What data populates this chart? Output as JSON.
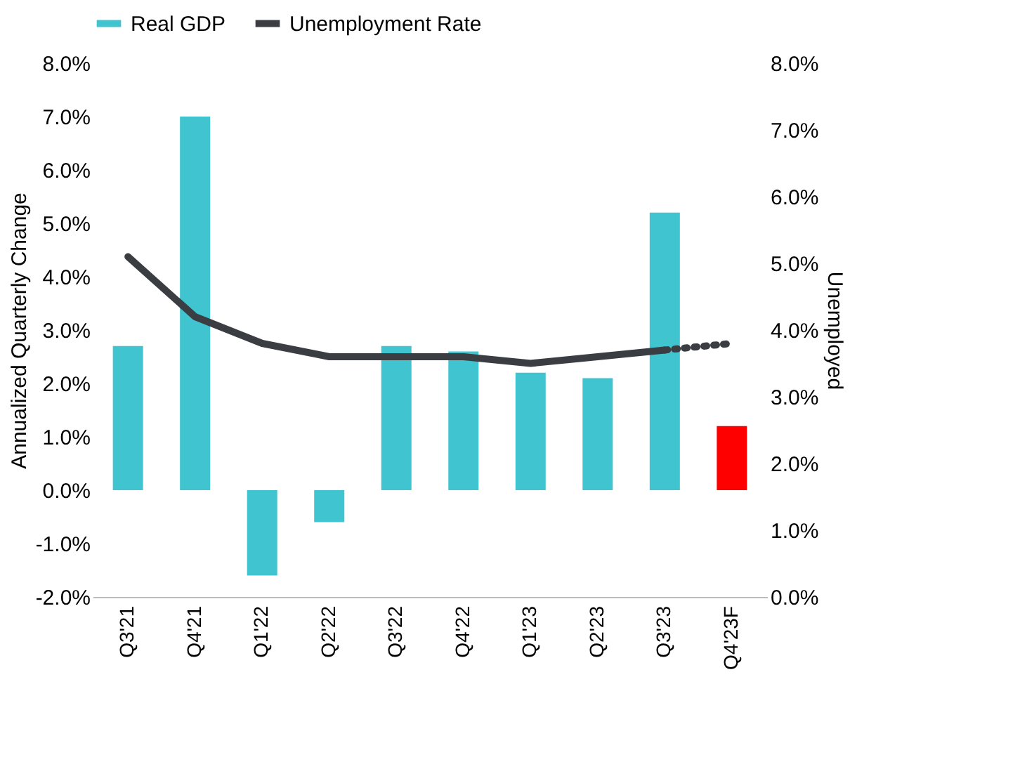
{
  "chart_data": {
    "type": "bar",
    "categories": [
      "Q3'21",
      "Q4'21",
      "Q1'22",
      "Q2'22",
      "Q3'22",
      "Q4'22",
      "Q1'23",
      "Q2'23",
      "Q3'23",
      "Q4'23F"
    ],
    "series": [
      {
        "name": "Real GDP",
        "color": "#40c4d0",
        "colors": [
          "#40c4d0",
          "#40c4d0",
          "#40c4d0",
          "#40c4d0",
          "#40c4d0",
          "#40c4d0",
          "#40c4d0",
          "#40c4d0",
          "#40c4d0",
          "#ff0000"
        ],
        "values": [
          2.7,
          7.0,
          -1.6,
          -0.6,
          2.7,
          2.6,
          2.2,
          2.1,
          5.2,
          1.2
        ]
      },
      {
        "name": "Unemployment Rate",
        "type": "line",
        "axis": "y2",
        "color": "#3a3d42",
        "line_style": "solid",
        "values": [
          5.1,
          4.2,
          3.8,
          3.6,
          3.6,
          3.6,
          3.5,
          3.6,
          3.7,
          null
        ]
      },
      {
        "type": "line",
        "axis": "y2",
        "color": "#3a3d42",
        "line_style": "dotted",
        "values": [
          null,
          null,
          null,
          null,
          null,
          null,
          null,
          null,
          3.7,
          3.8
        ]
      }
    ],
    "ylabel": "Annualized Quarterly Change",
    "y2label": "Unemployed",
    "ylim": [
      -2,
      8
    ],
    "yticks": [
      {
        "value": -2,
        "label": "-2.0%"
      },
      {
        "value": -1,
        "label": "-1.0%"
      },
      {
        "value": 0,
        "label": "0.0%"
      },
      {
        "value": 1,
        "label": "1.0%"
      },
      {
        "value": 2,
        "label": "2.0%"
      },
      {
        "value": 3,
        "label": "3.0%"
      },
      {
        "value": 4,
        "label": "4.0%"
      },
      {
        "value": 5,
        "label": "5.0%"
      },
      {
        "value": 6,
        "label": "6.0%"
      },
      {
        "value": 7,
        "label": "7.0%"
      },
      {
        "value": 8,
        "label": "8.0%"
      }
    ],
    "y2lim": [
      0,
      8
    ],
    "y2ticks": [
      {
        "value": 0,
        "label": "0.0%"
      },
      {
        "value": 1,
        "label": "1.0%"
      },
      {
        "value": 2,
        "label": "2.0%"
      },
      {
        "value": 3,
        "label": "3.0%"
      },
      {
        "value": 4,
        "label": "4.0%"
      },
      {
        "value": 5,
        "label": "5.0%"
      },
      {
        "value": 6,
        "label": "6.0%"
      },
      {
        "value": 7,
        "label": "7.0%"
      },
      {
        "value": 8,
        "label": "8.0%"
      }
    ],
    "grid": false,
    "legend": "top"
  }
}
